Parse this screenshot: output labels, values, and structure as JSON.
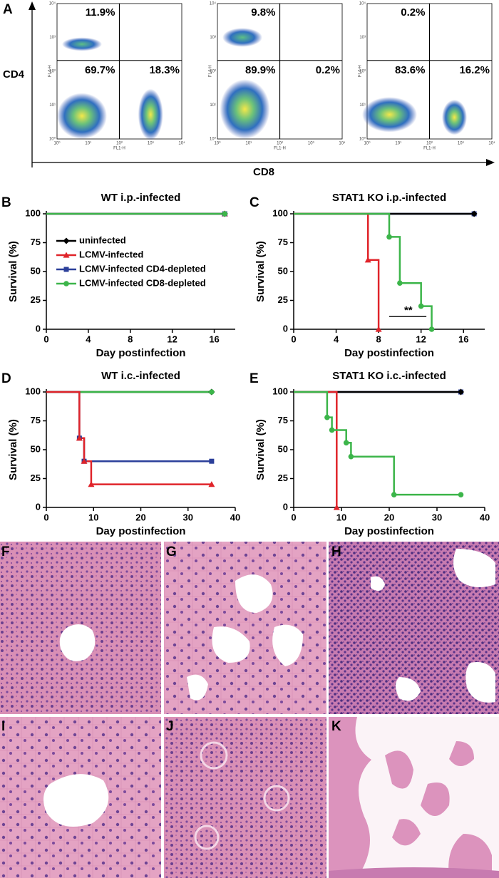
{
  "panel_labels": [
    "A",
    "B",
    "C",
    "D",
    "E",
    "F",
    "G",
    "H",
    "I",
    "J",
    "K"
  ],
  "flow": {
    "y_axis_label": "CD4",
    "x_axis_label": "CD8",
    "channel_y": "FL4-H",
    "channel_x": "FL1-H",
    "tick_labels": [
      "10⁰",
      "10¹",
      "10²",
      "10³",
      "10⁴"
    ],
    "plots": [
      {
        "top_left": "11.9%",
        "bottom_left": "69.7%",
        "bottom_right": "18.3%"
      },
      {
        "top_left": "9.8%",
        "bottom_left": "89.9%",
        "bottom_right": "0.2%"
      },
      {
        "top_left": "0.2%",
        "bottom_left": "83.6%",
        "bottom_right": "16.2%"
      }
    ]
  },
  "chart_data": [
    {
      "type": "line",
      "title": "WT i.p.-infected",
      "x_label": "Day postinfection",
      "y_label": "Survival (%)",
      "xlim": [
        0,
        18
      ],
      "xticks": [
        0,
        4,
        8,
        12,
        16
      ],
      "ylim": [
        0,
        100
      ],
      "yticks": [
        0,
        25,
        50,
        75,
        100
      ],
      "series": [
        {
          "name": "uninfected",
          "color": "#000000",
          "marker": "diamond",
          "x": [
            0,
            17
          ],
          "values": [
            100,
            100
          ]
        },
        {
          "name": "LCMV-infected",
          "color": "#e0242a",
          "marker": "triangle",
          "x": [
            0,
            17
          ],
          "values": [
            100,
            100
          ]
        },
        {
          "name": "LCMV-infected CD4-depleted",
          "color": "#2b3f9a",
          "marker": "square",
          "x": [
            0,
            17
          ],
          "values": [
            100,
            100
          ]
        },
        {
          "name": "LCMV-infected CD8-depleted",
          "color": "#3cb54a",
          "marker": "circle",
          "x": [
            0,
            17
          ],
          "values": [
            100,
            100
          ]
        }
      ]
    },
    {
      "type": "line",
      "title": "STAT1 KO i.p.-infected",
      "x_label": "Day postinfection",
      "y_label": "Survival (%)",
      "xlim": [
        0,
        18
      ],
      "xticks": [
        0,
        4,
        8,
        12,
        16
      ],
      "ylim": [
        0,
        100
      ],
      "yticks": [
        0,
        25,
        50,
        75,
        100
      ],
      "annotation": "**",
      "series": [
        {
          "color": "#2b3f9a",
          "marker": "square",
          "x": [
            0,
            17
          ],
          "values": [
            100,
            100
          ]
        },
        {
          "color": "#000000",
          "marker": "diamond",
          "x": [
            0,
            17
          ],
          "values": [
            100,
            100
          ]
        },
        {
          "color": "#e0242a",
          "marker": "triangle",
          "x": [
            0,
            7,
            8
          ],
          "values": [
            100,
            60,
            0
          ]
        },
        {
          "color": "#3cb54a",
          "marker": "circle",
          "x": [
            0,
            9,
            10,
            12,
            13
          ],
          "values": [
            100,
            80,
            40,
            20,
            0
          ]
        }
      ]
    },
    {
      "type": "line",
      "title": "WT i.c.-infected",
      "x_label": "Day postinfection",
      "y_label": "Survival (%)",
      "xlim": [
        0,
        40
      ],
      "xticks": [
        0,
        10,
        20,
        30,
        40
      ],
      "ylim": [
        0,
        100
      ],
      "yticks": [
        0,
        25,
        50,
        75,
        100
      ],
      "series": [
        {
          "color": "#000000",
          "marker": "diamond",
          "x": [
            0,
            35
          ],
          "values": [
            100,
            100
          ]
        },
        {
          "color": "#3cb54a",
          "marker": "circle",
          "x": [
            0,
            35
          ],
          "values": [
            100,
            100
          ]
        },
        {
          "color": "#2b3f9a",
          "marker": "square",
          "x": [
            0,
            7,
            8,
            35
          ],
          "values": [
            100,
            60,
            40,
            40
          ]
        },
        {
          "color": "#e0242a",
          "marker": "triangle",
          "x": [
            0,
            7,
            8,
            9.5,
            35
          ],
          "values": [
            100,
            60,
            40,
            20,
            20
          ]
        }
      ]
    },
    {
      "type": "line",
      "title": "STAT1 KO i.c.-infected",
      "x_label": "Day postinfection",
      "y_label": "Survival (%)",
      "xlim": [
        0,
        40
      ],
      "xticks": [
        0,
        10,
        20,
        30,
        40
      ],
      "ylim": [
        0,
        100
      ],
      "yticks": [
        0,
        25,
        50,
        75,
        100
      ],
      "series": [
        {
          "color": "#2b3f9a",
          "marker": "square",
          "x": [
            0,
            35
          ],
          "values": [
            100,
            100
          ]
        },
        {
          "color": "#000000",
          "marker": "diamond",
          "x": [
            0,
            35
          ],
          "values": [
            100,
            100
          ]
        },
        {
          "color": "#e0242a",
          "marker": "triangle",
          "x": [
            0,
            9
          ],
          "values": [
            100,
            0
          ]
        },
        {
          "color": "#3cb54a",
          "marker": "circle",
          "x": [
            0,
            7,
            8,
            11,
            12,
            21,
            35
          ],
          "values": [
            100,
            78,
            67,
            56,
            44,
            11,
            11
          ]
        }
      ]
    }
  ]
}
